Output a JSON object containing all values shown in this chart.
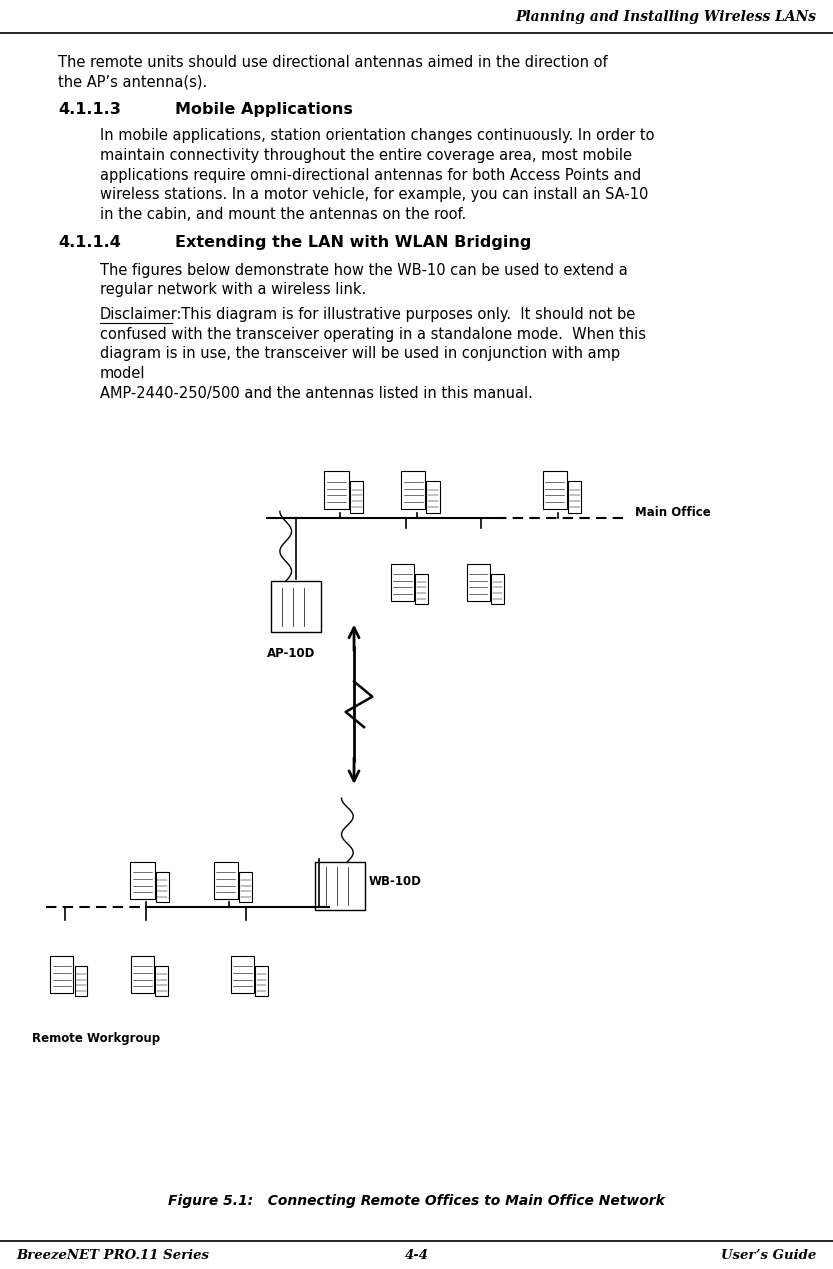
{
  "header_text": "Planning and Installing Wireless LANs",
  "footer_left": "BreezeNET PRO.11 Series",
  "footer_center": "4-4",
  "footer_right": "User’s Guide",
  "bg_color": "#ffffff",
  "text_color": "#000000"
}
